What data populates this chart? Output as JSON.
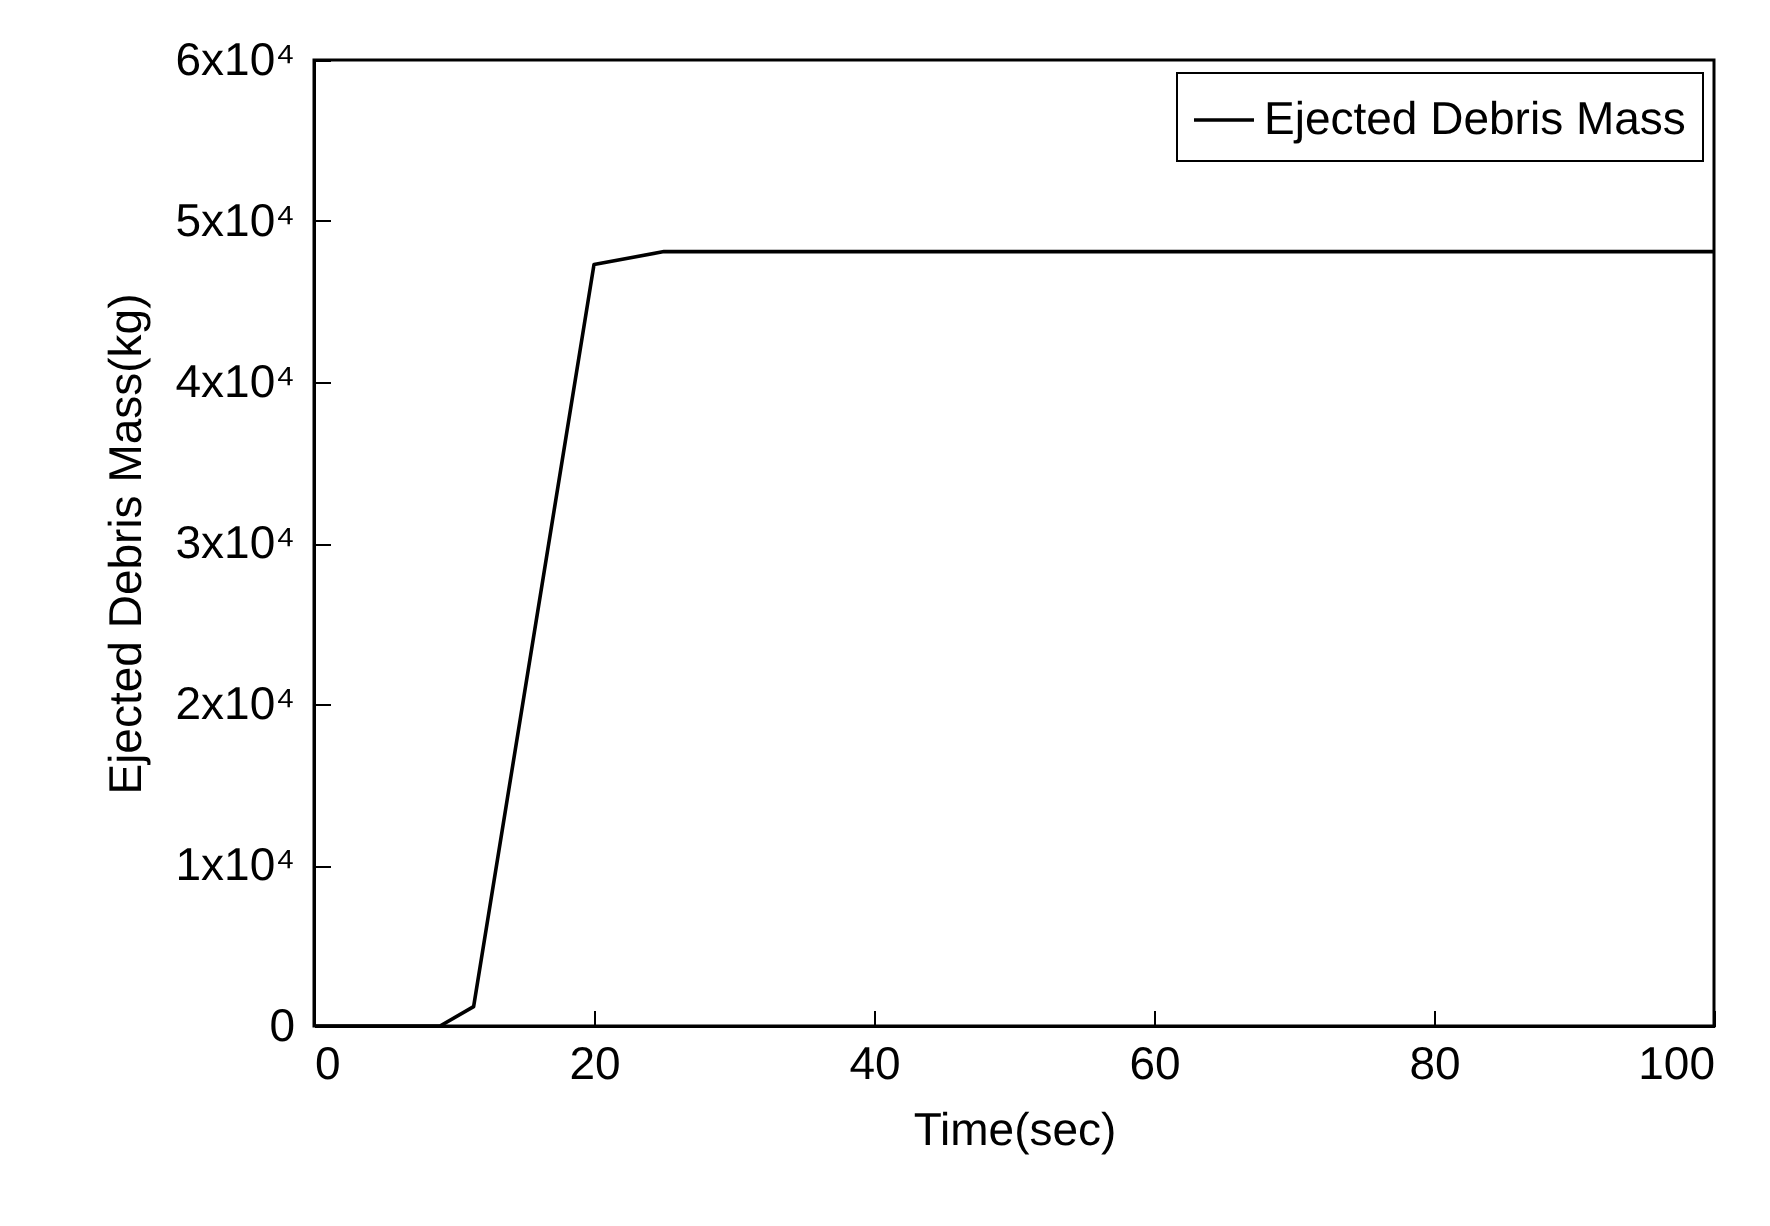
{
  "chart_data": {
    "type": "line",
    "xlabel": "Time(sec)",
    "ylabel": "Ejected Debris Mass(kg)",
    "x": [
      0,
      9,
      11.4,
      20,
      25,
      100
    ],
    "series": [
      {
        "name": "Ejected Debris Mass",
        "color": "#000000",
        "values": [
          0,
          0,
          1200,
          47300,
          48100,
          48100
        ]
      }
    ],
    "xlim": [
      0,
      100
    ],
    "xticks": [
      0,
      20,
      40,
      60,
      80,
      100
    ],
    "ylim": [
      0,
      60000
    ],
    "yticks": [
      {
        "value": 0,
        "label": "0"
      },
      {
        "value": 10000,
        "label": "1x10⁴"
      },
      {
        "value": 20000,
        "label": "2x10⁴"
      },
      {
        "value": 30000,
        "label": "3x10⁴"
      },
      {
        "value": 40000,
        "label": "4x10⁴"
      },
      {
        "value": 50000,
        "label": "5x10⁴"
      },
      {
        "value": 60000,
        "label": "6x10⁴"
      }
    ],
    "legend": "top right",
    "grid": false,
    "marker": "none",
    "line_style": "solid"
  }
}
